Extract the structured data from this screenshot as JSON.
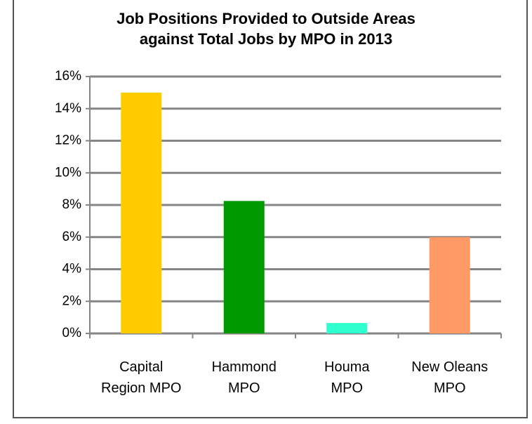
{
  "chart_data": {
    "type": "bar",
    "title": "Job Positions Provided to Outside Areas against Total Jobs by MPO in 2013",
    "categories": [
      "Capital Region MPO",
      "Hammond MPO",
      "Houma MPO",
      "New Oleans MPO"
    ],
    "values": [
      15,
      8.25,
      0.65,
      6
    ],
    "colors": [
      "#ffcc00",
      "#009900",
      "#2fffcf",
      "#ff9966"
    ],
    "ylim": [
      0,
      16
    ],
    "yticks": [
      {
        "value": 0,
        "label": "0%"
      },
      {
        "value": 2,
        "label": "2%"
      },
      {
        "value": 4,
        "label": "4%"
      },
      {
        "value": 6,
        "label": "6%"
      },
      {
        "value": 8,
        "label": "8%"
      },
      {
        "value": 10,
        "label": "10%"
      },
      {
        "value": 12,
        "label": "12%"
      },
      {
        "value": 14,
        "label": "14%"
      },
      {
        "value": 16,
        "label": "16%"
      }
    ],
    "grid": true
  }
}
